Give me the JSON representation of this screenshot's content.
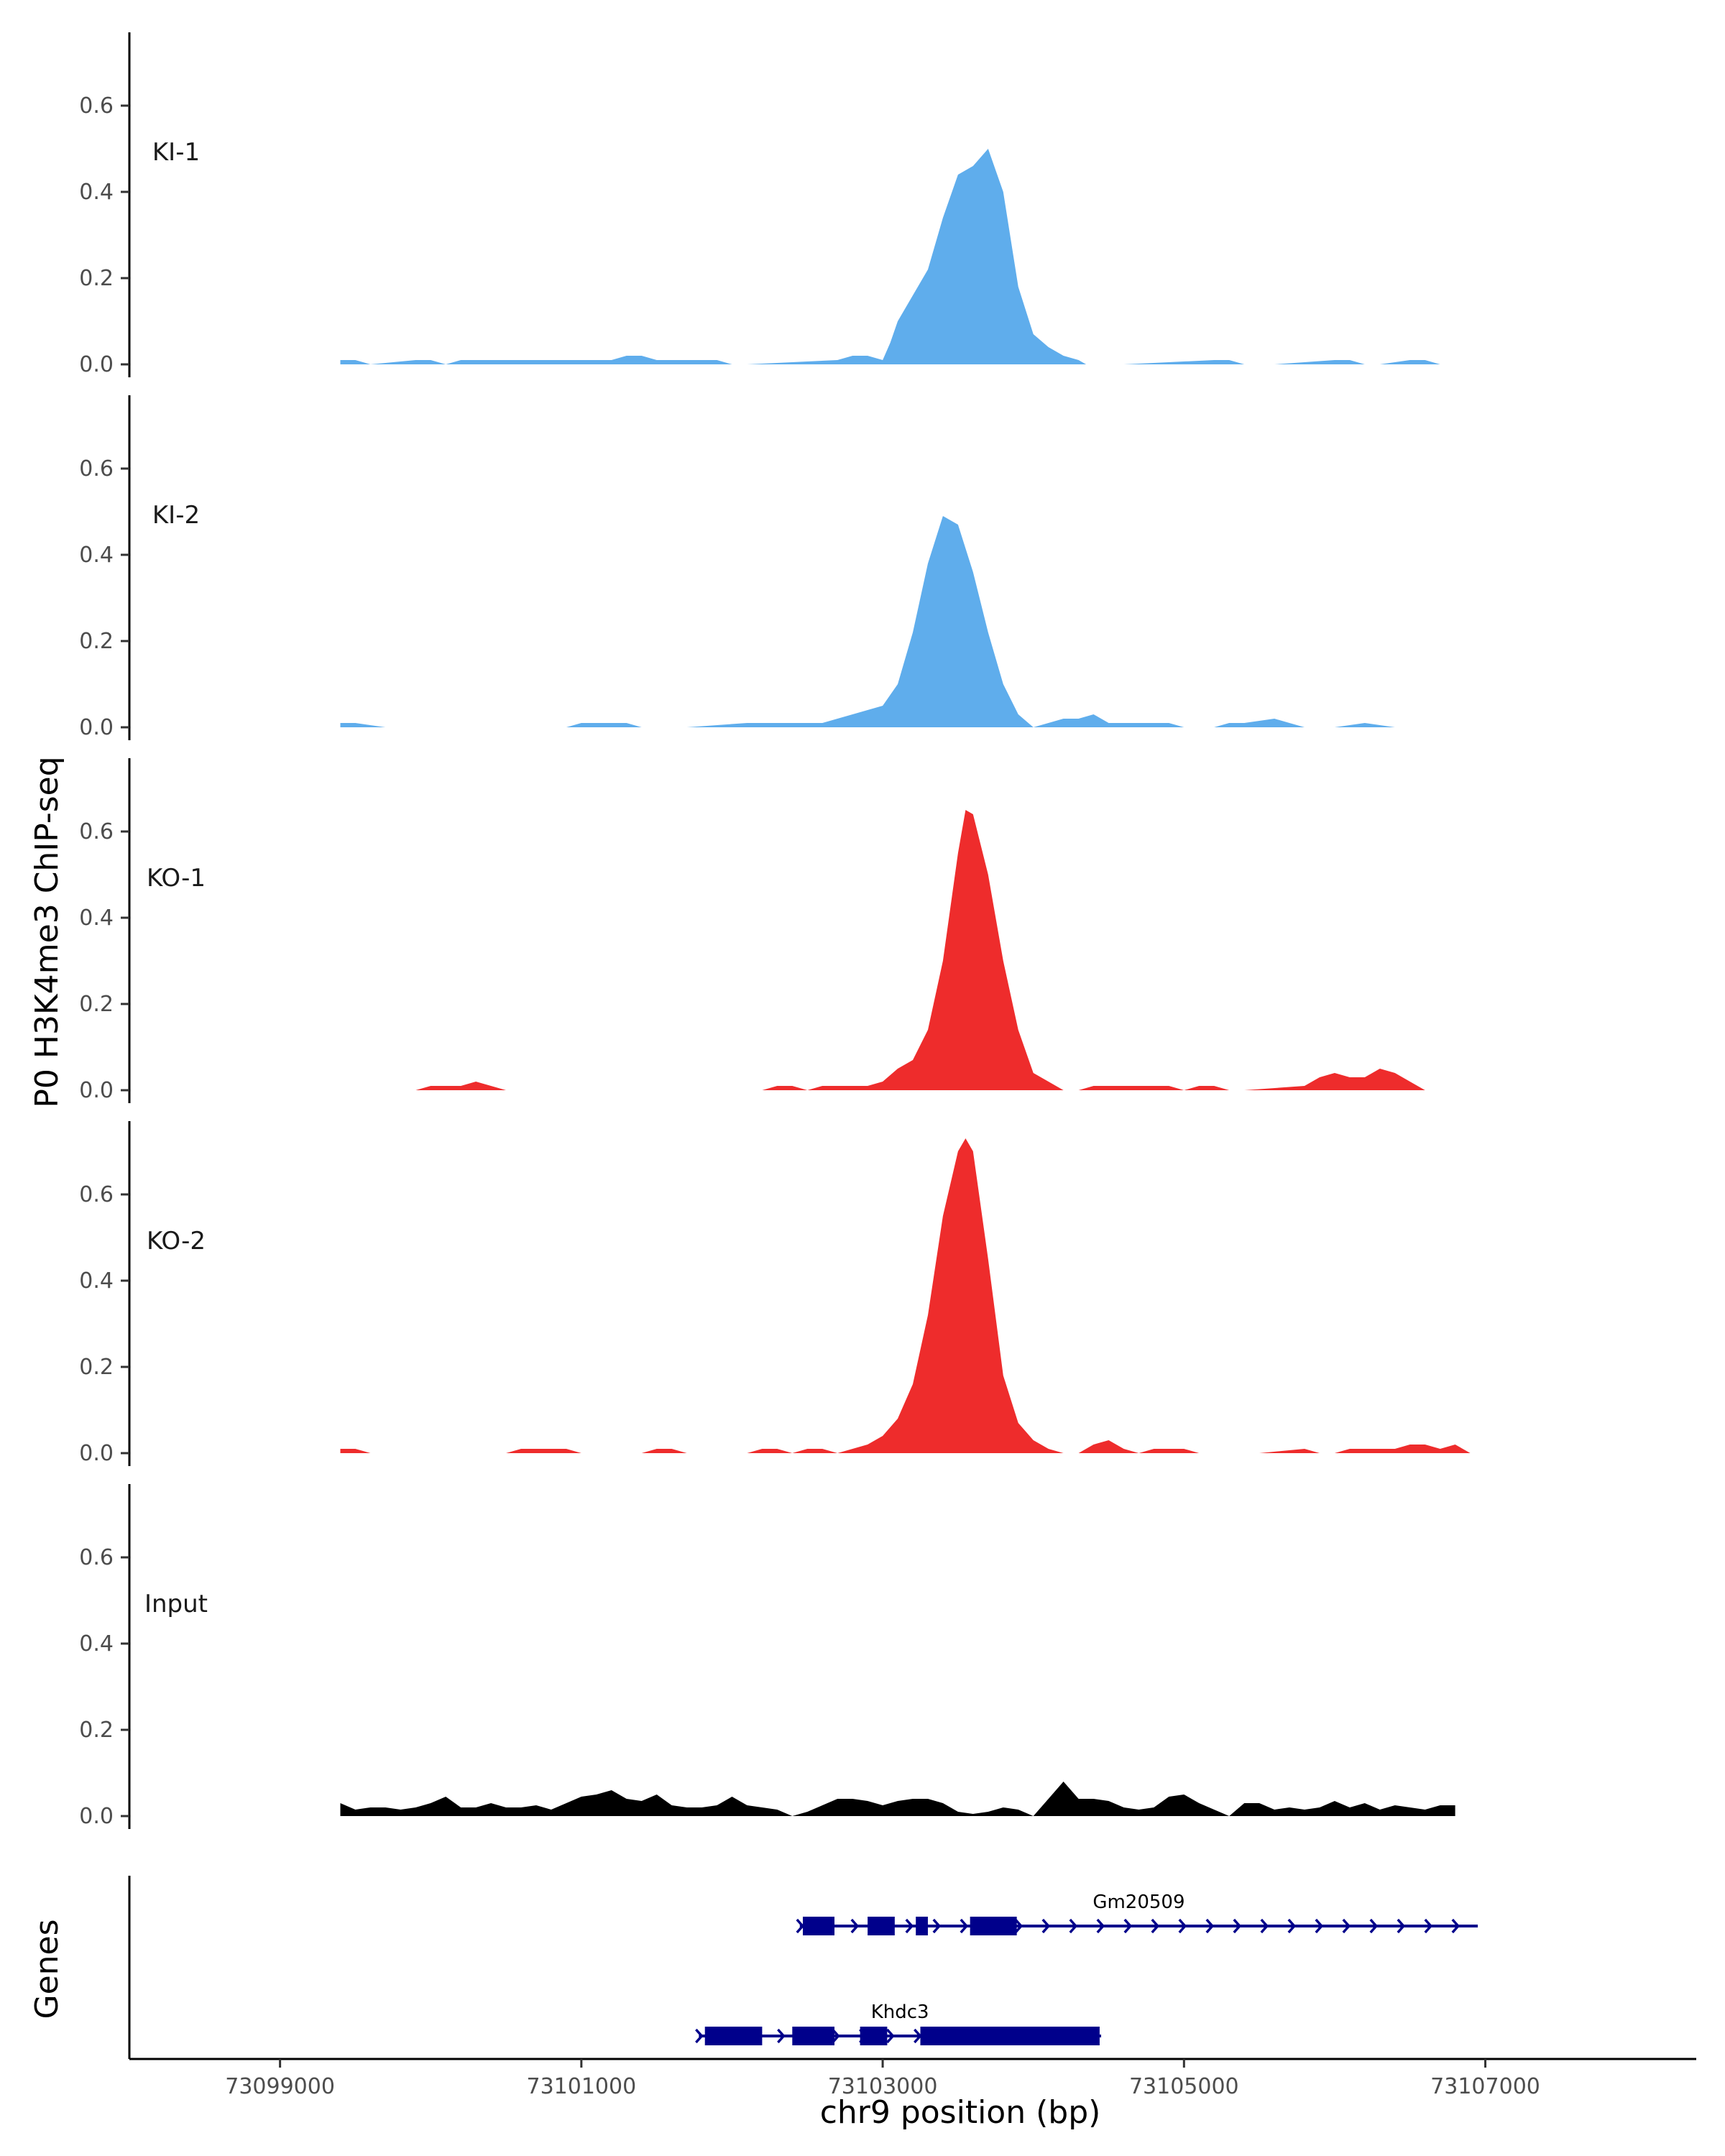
{
  "figure": {
    "ylabel": "P0 H3K4me3 ChIP-seq",
    "genes_label": "Genes"
  },
  "colors": {
    "KI": "#5FADEC",
    "KO": "#EE2C2C",
    "Input": "#000000",
    "gene": "#00008B"
  },
  "chart_data": {
    "type": "area",
    "title": "",
    "xlabel": "chr9 position (bp)",
    "ylabel": "P0 H3K4me3 ChIP-seq",
    "xlim": [
      73098000,
      73108400
    ],
    "ylim": [
      0,
      0.78
    ],
    "x_ticks": [
      73099000,
      73101000,
      73103000,
      73105000,
      73107000
    ],
    "x_tick_labels": [
      "73099000",
      "73101000",
      "73103000",
      "73105000",
      "73107000"
    ],
    "y_ticks": [
      0.0,
      0.2,
      0.4,
      0.6
    ],
    "y_tick_labels": [
      "0.0",
      "0.2",
      "0.4",
      "0.6"
    ],
    "series": [
      {
        "name": "KI-1",
        "color": "KI",
        "x": [
          73099400,
          73099500,
          73099600,
          73099900,
          73100000,
          73100100,
          73100200,
          73100300,
          73100500,
          73100600,
          73100700,
          73100900,
          73101000,
          73101100,
          73101200,
          73101300,
          73101400,
          73101500,
          73101600,
          73101700,
          73101800,
          73101900,
          73102000,
          73102100,
          73102700,
          73102800,
          73102900,
          73102950,
          73103000,
          73103050,
          73103100,
          73103200,
          73103300,
          73103400,
          73103500,
          73103600,
          73103700,
          73103800,
          73103900,
          73104000,
          73104100,
          73104200,
          73104300,
          73104350,
          73104400,
          73104500,
          73104600,
          73105200,
          73105300,
          73105400,
          73105500,
          73105600,
          73106000,
          73106100,
          73106200,
          73106300,
          73106500,
          73106600,
          73106700,
          73106800,
          73106900,
          73107000
        ],
        "y": [
          0.01,
          0.01,
          0,
          0.01,
          0.01,
          0,
          0.01,
          0.01,
          0.01,
          0.01,
          0.01,
          0.01,
          0.01,
          0.01,
          0.01,
          0.02,
          0.02,
          0.01,
          0.01,
          0.01,
          0.01,
          0.01,
          0,
          0,
          0.01,
          0.02,
          0.02,
          0.015,
          0.01,
          0.05,
          0.1,
          0.16,
          0.22,
          0.34,
          0.44,
          0.46,
          0.5,
          0.4,
          0.18,
          0.07,
          0.04,
          0.02,
          0.01,
          0,
          0,
          0,
          0,
          0.01,
          0.01,
          0,
          0,
          0,
          0.01,
          0.01,
          0,
          0,
          0.01,
          0.01,
          0,
          0,
          0,
          0
        ]
      },
      {
        "name": "KI-2",
        "color": "KI",
        "x": [
          73099400,
          73099500,
          73099700,
          73099900,
          73100000,
          73100200,
          73100300,
          73100500,
          73100900,
          73101000,
          73101100,
          73101200,
          73101300,
          73101400,
          73101500,
          73101700,
          73102100,
          73102200,
          73102300,
          73102400,
          73102500,
          73102600,
          73102700,
          73102800,
          73102900,
          73103000,
          73103100,
          73103200,
          73103300,
          73103400,
          73103500,
          73103600,
          73103700,
          73103800,
          73103900,
          73104000,
          73104100,
          73104200,
          73104300,
          73104400,
          73104500,
          73104600,
          73104700,
          73104800,
          73104900,
          73105000,
          73105100,
          73105200,
          73105300,
          73105400,
          73105600,
          73105700,
          73105800,
          73105900,
          73106000,
          73106200,
          73106400,
          73106500,
          73106600,
          73106700,
          73106800
        ],
        "y": [
          0.01,
          0.01,
          0,
          0,
          0,
          0,
          0,
          0,
          0,
          0.01,
          0.01,
          0.01,
          0.01,
          0,
          0,
          0,
          0.01,
          0.01,
          0.01,
          0.01,
          0.01,
          0.01,
          0.02,
          0.03,
          0.04,
          0.05,
          0.1,
          0.22,
          0.38,
          0.49,
          0.47,
          0.36,
          0.22,
          0.1,
          0.03,
          0,
          0.01,
          0.02,
          0.02,
          0.03,
          0.01,
          0.01,
          0.01,
          0.01,
          0.01,
          0,
          0,
          0,
          0.01,
          0.01,
          0.02,
          0.01,
          0,
          0,
          0,
          0.01,
          0,
          0,
          0,
          0,
          0
        ]
      },
      {
        "name": "KO-1",
        "color": "KO",
        "x": [
          73099800,
          73099900,
          73100000,
          73100100,
          73100200,
          73100300,
          73100400,
          73100500,
          73102200,
          73102300,
          73102400,
          73102500,
          73102600,
          73102700,
          73102800,
          73102900,
          73103000,
          73103100,
          73103200,
          73103300,
          73103400,
          73103500,
          73103550,
          73103600,
          73103700,
          73103800,
          73103900,
          73104000,
          73104100,
          73104200,
          73104300,
          73104400,
          73104500,
          73104600,
          73104700,
          73104800,
          73104900,
          73105000,
          73105100,
          73105200,
          73105300,
          73105400,
          73105800,
          73105900,
          73106000,
          73106100,
          73106200,
          73106300,
          73106400,
          73106500,
          73106600
        ],
        "y": [
          0,
          0,
          0.01,
          0.01,
          0.01,
          0.02,
          0.01,
          0,
          0,
          0.01,
          0.01,
          0,
          0.01,
          0.01,
          0.01,
          0.01,
          0.02,
          0.05,
          0.07,
          0.14,
          0.3,
          0.55,
          0.65,
          0.64,
          0.5,
          0.3,
          0.14,
          0.04,
          0.02,
          0,
          0,
          0.01,
          0.01,
          0.01,
          0.01,
          0.01,
          0.01,
          0,
          0.01,
          0.01,
          0,
          0,
          0.01,
          0.03,
          0.04,
          0.03,
          0.03,
          0.05,
          0.04,
          0.02,
          0
        ]
      },
      {
        "name": "KO-2",
        "color": "KO",
        "x": [
          73099400,
          73099500,
          73099600,
          73099900,
          73100000,
          73100500,
          73100600,
          73100700,
          73100800,
          73100900,
          73101000,
          73101100,
          73101400,
          73101500,
          73101600,
          73101700,
          73102100,
          73102200,
          73102300,
          73102400,
          73102500,
          73102600,
          73102700,
          73102800,
          73102900,
          73103000,
          73103100,
          73103200,
          73103300,
          73103400,
          73103500,
          73103550,
          73103600,
          73103700,
          73103800,
          73103900,
          73104000,
          73104100,
          73104200,
          73104300,
          73104400,
          73104500,
          73104600,
          73104700,
          73104800,
          73104900,
          73105000,
          73105100,
          73105200,
          73105300,
          73105400,
          73105500,
          73105800,
          73105900,
          73106000,
          73106100,
          73106200,
          73106400,
          73106500,
          73106600,
          73106700,
          73106800,
          73106900
        ],
        "y": [
          0.01,
          0.01,
          0,
          0,
          0,
          0,
          0.01,
          0.01,
          0.01,
          0.01,
          0,
          0,
          0,
          0.01,
          0.01,
          0,
          0,
          0.01,
          0.01,
          0,
          0.01,
          0.01,
          0,
          0.01,
          0.02,
          0.04,
          0.08,
          0.16,
          0.32,
          0.55,
          0.7,
          0.73,
          0.7,
          0.45,
          0.18,
          0.07,
          0.03,
          0.01,
          0,
          0,
          0.02,
          0.03,
          0.01,
          0,
          0.01,
          0.01,
          0.01,
          0,
          0,
          0,
          0,
          0,
          0.01,
          0,
          0,
          0.01,
          0.01,
          0.01,
          0.02,
          0.02,
          0.01,
          0.02,
          0
        ]
      },
      {
        "name": "Input",
        "color": "Input",
        "x": [
          73099400,
          73099500,
          73099600,
          73099700,
          73099800,
          73099900,
          73100000,
          73100100,
          73100200,
          73100300,
          73100400,
          73100500,
          73100600,
          73100700,
          73100800,
          73100900,
          73101000,
          73101100,
          73101200,
          73101300,
          73101400,
          73101500,
          73101600,
          73101700,
          73101800,
          73101900,
          73102000,
          73102100,
          73102200,
          73102300,
          73102400,
          73102500,
          73102600,
          73102700,
          73102800,
          73102900,
          73103000,
          73103100,
          73103200,
          73103300,
          73103400,
          73103500,
          73103600,
          73103700,
          73103800,
          73103900,
          73104000,
          73104100,
          73104200,
          73104300,
          73104400,
          73104500,
          73104600,
          73104700,
          73104800,
          73104900,
          73105000,
          73105100,
          73105200,
          73105300,
          73105400,
          73105500,
          73105600,
          73105700,
          73105800,
          73105900,
          73106000,
          73106100,
          73106200,
          73106300,
          73106400,
          73106500,
          73106600,
          73106700,
          73106800
        ],
        "y": [
          0.03,
          0.015,
          0.02,
          0.02,
          0.015,
          0.02,
          0.03,
          0.045,
          0.02,
          0.02,
          0.03,
          0.02,
          0.02,
          0.025,
          0.015,
          0.03,
          0.045,
          0.05,
          0.06,
          0.04,
          0.035,
          0.05,
          0.025,
          0.02,
          0.02,
          0.025,
          0.045,
          0.025,
          0.02,
          0.015,
          0,
          0.01,
          0.025,
          0.04,
          0.04,
          0.035,
          0.025,
          0.035,
          0.04,
          0.04,
          0.03,
          0.01,
          0.005,
          0.01,
          0.02,
          0.015,
          0,
          0.04,
          0.08,
          0.04,
          0.04,
          0.035,
          0.02,
          0.015,
          0.02,
          0.045,
          0.05,
          0.03,
          0.015,
          0,
          0.03,
          0.03,
          0.015,
          0.02,
          0.015,
          0.02,
          0.035,
          0.02,
          0.03,
          0.015,
          0.025,
          0.02,
          0.015,
          0.025,
          0.025
        ]
      }
    ],
    "genes": [
      {
        "name": "Gm20509",
        "strand": "+",
        "start": 73102450,
        "end": 73106950,
        "exons": [
          [
            73102470,
            73102680
          ],
          [
            73102900,
            73103080
          ],
          [
            73103220,
            73103300
          ],
          [
            73103580,
            73103890
          ]
        ]
      },
      {
        "name": "Khdc3",
        "strand": "+",
        "start": 73101780,
        "end": 73104450,
        "exons": [
          [
            73101820,
            73102200
          ],
          [
            73102400,
            73102680
          ],
          [
            73102850,
            73103030
          ],
          [
            73103250,
            73104440
          ]
        ]
      }
    ]
  }
}
